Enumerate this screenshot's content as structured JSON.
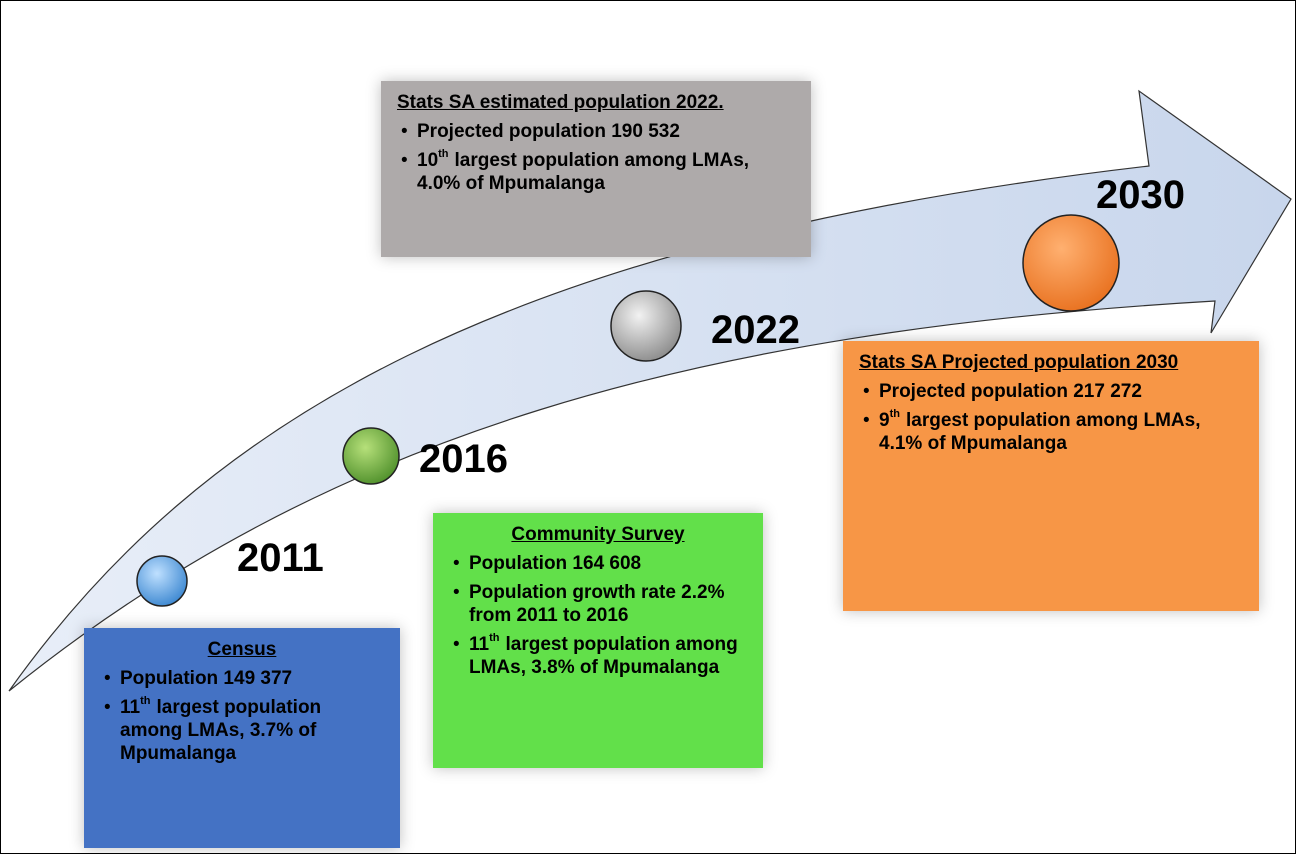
{
  "milestones": [
    {
      "year": "2011",
      "title": "Census",
      "bullets": [
        "Population 149 377",
        {
          "number": "11",
          "sup": "th",
          "rest": "largest population among LMAs, 3.7% of Mpumalanga"
        }
      ]
    },
    {
      "year": "2016",
      "title": "Community Survey",
      "bullets": [
        "Population 164 608",
        "Population growth rate 2.2% from 2011 to 2016",
        {
          "number": "11",
          "sup": "th",
          "rest": "largest population among LMAs, 3.8% of Mpumalanga"
        }
      ]
    },
    {
      "year": "2022",
      "title": "Stats SA estimated population 2022.",
      "bullets": [
        "Projected population   190 532",
        {
          "number": "10",
          "sup": "th",
          "rest": "largest population among LMAs, 4.0% of Mpumalanga"
        }
      ]
    },
    {
      "year": "2030",
      "title": "Stats SA Projected population 2030",
      "bullets": [
        "Projected population 217 272",
        {
          "number": "9",
          "sup": "th",
          "rest": "largest population among LMAs, 4.1% of Mpumalanga"
        }
      ]
    }
  ]
}
